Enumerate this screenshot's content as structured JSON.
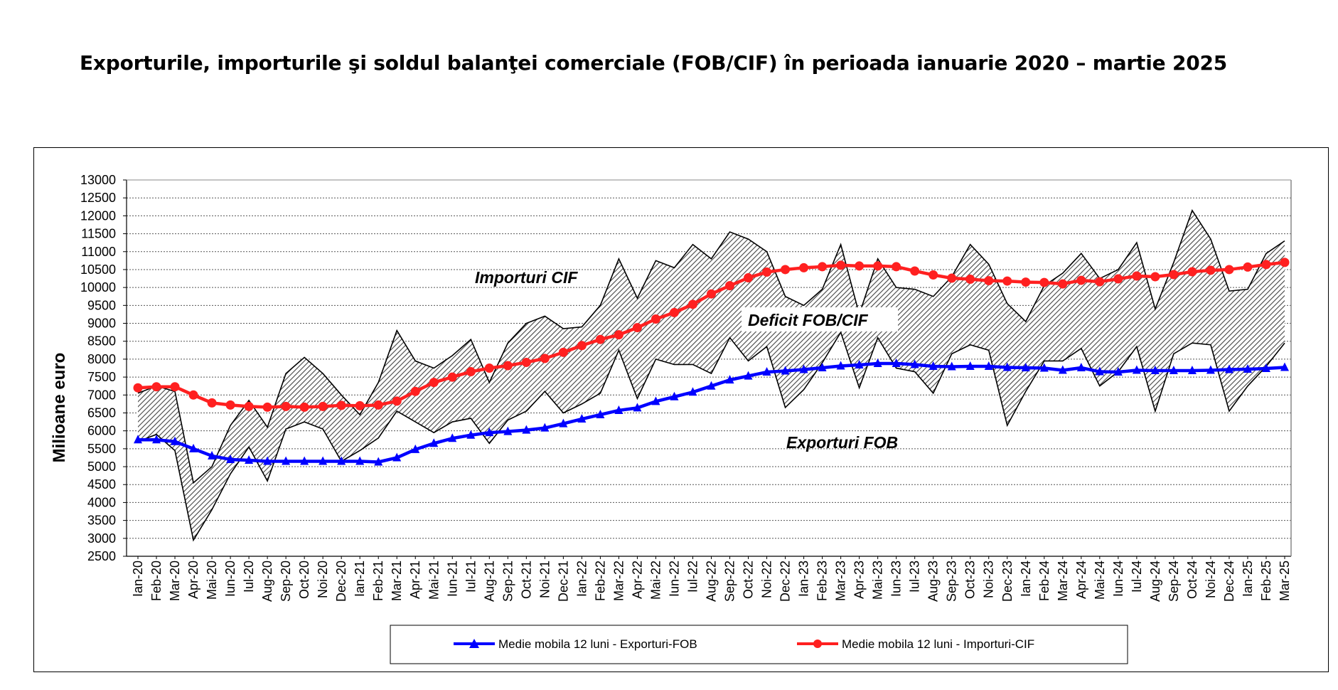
{
  "title": "Exporturile, importurile şi soldul balanţei comerciale (FOB/CIF) în perioada ianuarie 2020 – martie 2025",
  "chart_data": {
    "type": "line",
    "ylabel": "Milioane  euro",
    "xlabel": "",
    "ylim": [
      2500,
      13000
    ],
    "yticks": [
      2500,
      3000,
      3500,
      4000,
      4500,
      5000,
      5500,
      6000,
      6500,
      7000,
      7500,
      8000,
      8500,
      9000,
      9500,
      10000,
      10500,
      11000,
      11500,
      12000,
      12500,
      13000
    ],
    "grid": "horizontal dotted",
    "categories": [
      "Ian-20",
      "Feb-20",
      "Mar-20",
      "Apr-20",
      "Mai-20",
      "Iun-20",
      "Iul-20",
      "Aug-20",
      "Sep-20",
      "Oct-20",
      "Noi-20",
      "Dec-20",
      "Ian-21",
      "Feb-21",
      "Mar-21",
      "Apr-21",
      "Mai-21",
      "Iun-21",
      "Iul-21",
      "Aug-21",
      "Sep-21",
      "Oct-21",
      "Noi-21",
      "Dec-21",
      "Ian-22",
      "Feb-22",
      "Mar-22",
      "Apr-22",
      "Mai-22",
      "Iun-22",
      "Iul-22",
      "Aug-22",
      "Sep-22",
      "Oct-22",
      "Noi-22",
      "Dec-22",
      "Ian-23",
      "Feb-23",
      "Mar-23",
      "Apr-23",
      "Mai-23",
      "Iun-23",
      "Iul-23",
      "Aug-23",
      "Sep-23",
      "Oct-23",
      "Noi-23",
      "Dec-23",
      "Ian-24",
      "Feb-24",
      "Mar-24",
      "Apr-24",
      "Mai-24",
      "Iun-24",
      "Iul-24",
      "Aug-24",
      "Sep-24",
      "Oct-24",
      "Noi-24",
      "Dec-24",
      "Ian-25",
      "Feb-25",
      "Mar-25"
    ],
    "imports_cif": [
      7050,
      7250,
      7100,
      4550,
      5000,
      6150,
      6850,
      6100,
      7600,
      8050,
      7600,
      7000,
      6450,
      7350,
      8800,
      7950,
      7750,
      8100,
      8550,
      7350,
      8450,
      9000,
      9200,
      8850,
      8900,
      9500,
      10800,
      9700,
      10750,
      10550,
      11200,
      10800,
      11550,
      11350,
      11000,
      9750,
      9500,
      9950,
      11200,
      9250,
      10800,
      10000,
      9950,
      9750,
      10300,
      11200,
      10650,
      9550,
      9050,
      10050,
      10400,
      10950,
      10250,
      10500,
      11250,
      9400,
      10700,
      12150,
      11350,
      9900,
      9950,
      10950,
      11300
    ],
    "exports_fob": [
      5700,
      5900,
      5450,
      2950,
      3800,
      4800,
      5550,
      4600,
      6050,
      6250,
      6050,
      5150,
      5450,
      5800,
      6550,
      6250,
      5950,
      6250,
      6350,
      5650,
      6300,
      6550,
      7100,
      6500,
      6750,
      7050,
      8250,
      6900,
      8000,
      7850,
      7850,
      7600,
      8600,
      7950,
      8350,
      6650,
      7150,
      7900,
      8750,
      7200,
      8600,
      7750,
      7650,
      7050,
      8150,
      8400,
      8250,
      6150,
      7100,
      7950,
      7950,
      8300,
      7250,
      7650,
      8350,
      6550,
      8150,
      8450,
      8400,
      6550,
      7250,
      7800,
      8450
    ],
    "series": [
      {
        "name": "Medie mobila 12 luni - Exporturi-FOB",
        "color": "#0000ff",
        "marker": "triangle",
        "values": [
          5750,
          5750,
          5700,
          5500,
          5300,
          5200,
          5180,
          5150,
          5150,
          5150,
          5150,
          5150,
          5150,
          5130,
          5250,
          5480,
          5650,
          5790,
          5880,
          5950,
          5980,
          6020,
          6080,
          6200,
          6330,
          6450,
          6570,
          6640,
          6820,
          6950,
          7080,
          7250,
          7420,
          7530,
          7640,
          7670,
          7710,
          7760,
          7810,
          7840,
          7880,
          7880,
          7850,
          7800,
          7790,
          7800,
          7800,
          7770,
          7760,
          7750,
          7690,
          7760,
          7650,
          7640,
          7690,
          7680,
          7680,
          7680,
          7690,
          7710,
          7720,
          7740,
          7770
        ]
      },
      {
        "name": "Medie mobila 12 luni - Importuri-CIF",
        "color": "#ff2020",
        "marker": "circle",
        "values": [
          7200,
          7230,
          7230,
          7000,
          6780,
          6720,
          6680,
          6660,
          6680,
          6660,
          6680,
          6710,
          6700,
          6720,
          6830,
          7100,
          7350,
          7500,
          7650,
          7750,
          7820,
          7910,
          8020,
          8190,
          8380,
          8550,
          8680,
          8880,
          9120,
          9300,
          9530,
          9820,
          10050,
          10270,
          10430,
          10500,
          10550,
          10580,
          10620,
          10600,
          10600,
          10580,
          10460,
          10350,
          10260,
          10230,
          10190,
          10180,
          10150,
          10140,
          10100,
          10200,
          10160,
          10240,
          10320,
          10300,
          10360,
          10440,
          10480,
          10500,
          10570,
          10640,
          10700
        ]
      }
    ],
    "annotations": [
      "Importuri CIF",
      "Deficit FOB/CIF",
      "Exporturi FOB"
    ],
    "legend": {
      "placement": "bottom-center",
      "items": [
        "Medie mobila 12 luni - Exporturi-FOB",
        "Medie mobila 12 luni - Importuri-CIF"
      ]
    }
  }
}
